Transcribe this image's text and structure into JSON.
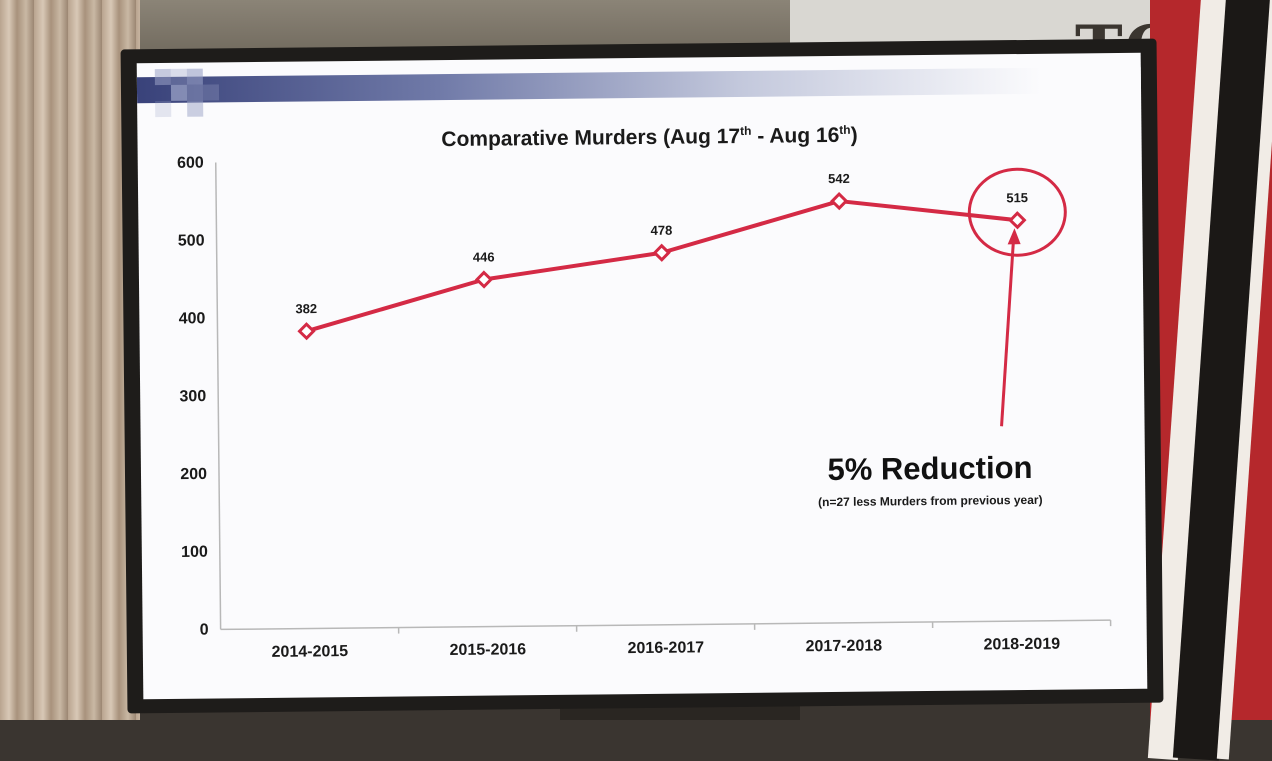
{
  "chart_data": {
    "type": "line",
    "title": {
      "prefix": "Comparative Murders (Aug 17",
      "sup1": "th",
      "middle": " - Aug 16",
      "sup2": "th",
      "suffix": ")"
    },
    "xlabel": "",
    "ylabel": "",
    "ylim": [
      0,
      600
    ],
    "yticks": [
      "0",
      "100",
      "200",
      "300",
      "400",
      "500",
      "600"
    ],
    "grid": false,
    "categories": [
      "2014-2015",
      "2015-2016",
      "2016-2017",
      "2017-2018",
      "2018-2019"
    ],
    "series": [
      {
        "values": [
          382,
          446,
          478,
          542,
          515
        ],
        "color": "#d42a45"
      }
    ],
    "data_labels": [
      "382",
      "446",
      "478",
      "542",
      "515"
    ],
    "annotation": {
      "main": "5% Reduction",
      "sub": "(n=27 less Murders from previous year)",
      "color": "#d42a45"
    }
  }
}
